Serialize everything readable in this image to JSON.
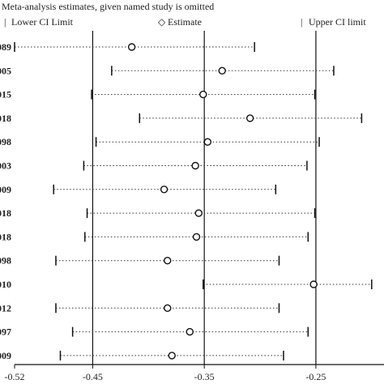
{
  "chart_data": {
    "type": "scatter",
    "title": "Meta-analysis estimates, given named study is omitted",
    "legend": [
      {
        "symbol": "|",
        "label": "Lower CI Limit"
      },
      {
        "symbol": "◇",
        "label": "Estimate"
      },
      {
        "symbol": "|",
        "label": "Upper CI limit"
      }
    ],
    "legend_placement": "top",
    "xlim": [
      -0.52,
      -0.2
    ],
    "x_ticks": [
      {
        "value": -0.52,
        "label": "-0.52"
      },
      {
        "value": -0.45,
        "label": "-0.45"
      },
      {
        "value": -0.35,
        "label": "-0.35"
      },
      {
        "value": -0.25,
        "label": "-0.25"
      }
    ],
    "reference_lines": [
      -0.45,
      -0.35,
      -0.25
    ],
    "studies": [
      {
        "label": "089",
        "lower": -0.52,
        "estimate": -0.415,
        "upper": -0.305
      },
      {
        "label": "005",
        "lower": -0.433,
        "estimate": -0.334,
        "upper": -0.234
      },
      {
        "label": "015",
        "lower": -0.451,
        "estimate": -0.351,
        "upper": -0.251
      },
      {
        "label": "018",
        "lower": -0.408,
        "estimate": -0.309,
        "upper": -0.209
      },
      {
        "label": "098",
        "lower": -0.447,
        "estimate": -0.347,
        "upper": -0.247
      },
      {
        "label": "003",
        "lower": -0.458,
        "estimate": -0.358,
        "upper": -0.258
      },
      {
        "label": "009",
        "lower": -0.485,
        "estimate": -0.386,
        "upper": -0.286
      },
      {
        "label": "018",
        "lower": -0.455,
        "estimate": -0.355,
        "upper": -0.251
      },
      {
        "label": "018",
        "lower": -0.457,
        "estimate": -0.357,
        "upper": -0.257
      },
      {
        "label": "098",
        "lower": -0.483,
        "estimate": -0.383,
        "upper": -0.283
      },
      {
        "label": "010",
        "lower": -0.351,
        "estimate": -0.252,
        "upper": -0.2
      },
      {
        "label": "012",
        "lower": -0.483,
        "estimate": -0.383,
        "upper": -0.283
      },
      {
        "label": "097",
        "lower": -0.468,
        "estimate": -0.363,
        "upper": -0.257
      },
      {
        "label": "009",
        "lower": -0.479,
        "estimate": -0.379,
        "upper": -0.279
      }
    ]
  }
}
